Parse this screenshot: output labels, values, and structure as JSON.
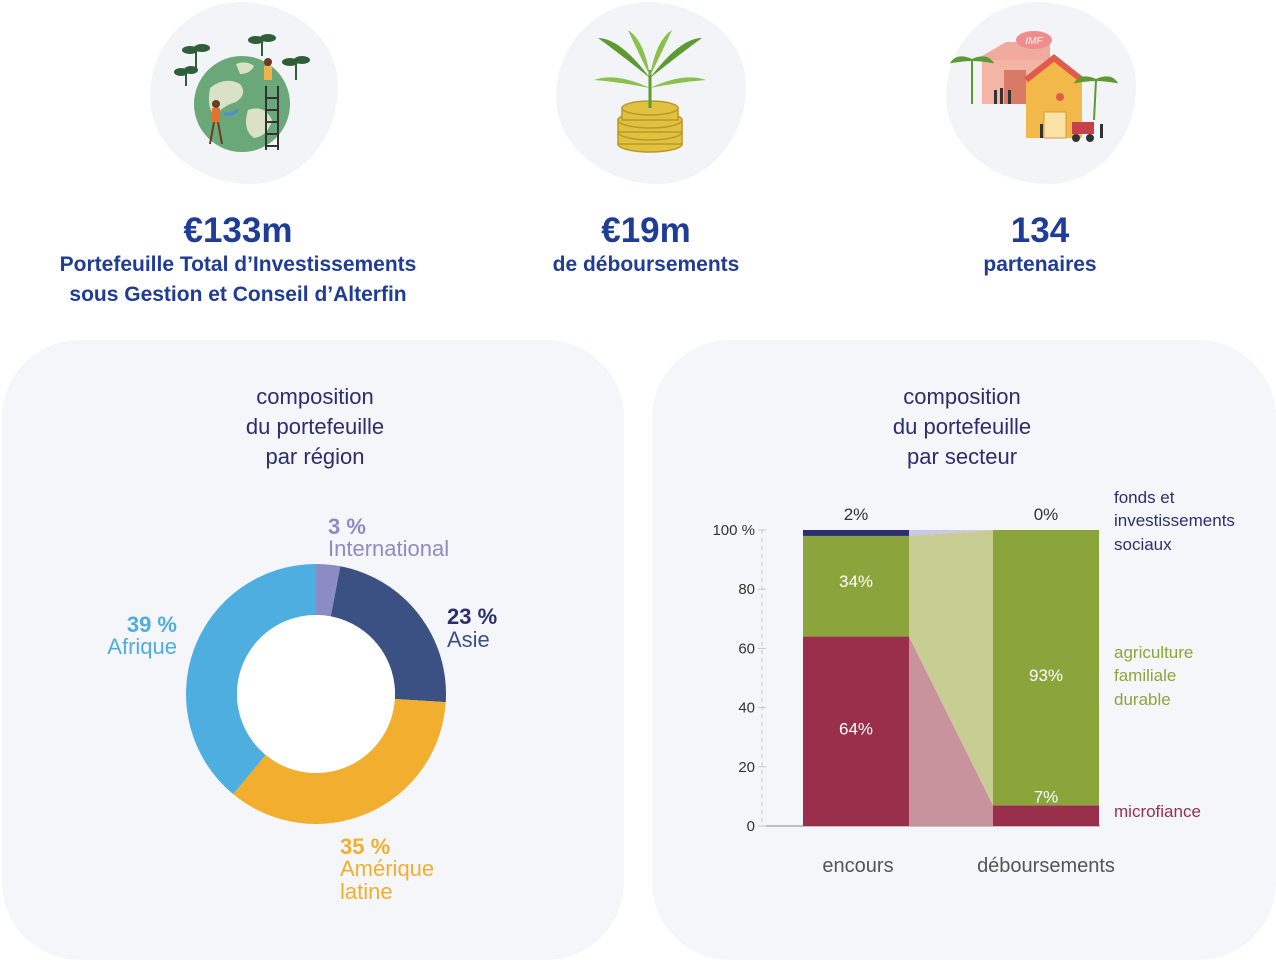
{
  "kpis": [
    {
      "value": "€133m",
      "line1": "Portefeuille Total d’Investissements",
      "line2": "sous Gestion et Conseil d’Alterfin",
      "icon": "globe-plants-icon"
    },
    {
      "value": "€19m",
      "line1": "de déboursements",
      "line2": "",
      "icon": "plant-coins-icon"
    },
    {
      "value": "134",
      "line1": "partenaires",
      "line2": "",
      "icon": "village-buildings-icon"
    }
  ],
  "icon_text": {
    "imf": "IMF"
  },
  "colors": {
    "afrique": "#4faee0",
    "asie": "#3b5183",
    "amerique": "#f2ae2e",
    "international": "#8b8cc4",
    "fonds": "#2b2f6e",
    "agriculture": "#8ba53c",
    "agriculture_light": "#c8cd94",
    "microfinance": "#9a2f4b",
    "microfinance_light": "#c9939d",
    "title": "#2a2d6e",
    "kpi": "#1f3c96"
  },
  "chart_data": [
    {
      "type": "pie",
      "title_lines": [
        "composition",
        "du portefeuille",
        "par région"
      ],
      "slices": [
        {
          "key": "international",
          "pct": "3 %",
          "name": "International",
          "value": 3
        },
        {
          "key": "asie",
          "pct": "23 %",
          "name": "Asie",
          "value": 23
        },
        {
          "key": "amerique",
          "pct": "35 %",
          "name_lines": [
            "Amérique",
            "latine"
          ],
          "value": 35
        },
        {
          "key": "afrique",
          "pct": "39 %",
          "name": "Afrique",
          "value": 39
        }
      ]
    },
    {
      "type": "bar",
      "stacked": true,
      "title_lines": [
        "composition",
        "du portefeuille",
        "par secteur"
      ],
      "categories": [
        "encours",
        "déboursements"
      ],
      "ylim": [
        0,
        100
      ],
      "yticks": [
        {
          "value": 100,
          "label": "100 %"
        },
        {
          "value": 80,
          "label": "80"
        },
        {
          "value": 60,
          "label": "60"
        },
        {
          "value": 40,
          "label": "40"
        },
        {
          "value": 20,
          "label": "20"
        },
        {
          "value": 0,
          "label": "0"
        }
      ],
      "series": [
        {
          "key": "microfinance",
          "name_lines": [
            "microfiance"
          ],
          "values": [
            64,
            7
          ],
          "labels": [
            "64%",
            "7%"
          ]
        },
        {
          "key": "agriculture",
          "name_lines": [
            "agriculture",
            "familiale",
            "durable"
          ],
          "values": [
            34,
            93
          ],
          "labels": [
            "34%",
            "93%"
          ]
        },
        {
          "key": "fonds",
          "name_lines": [
            "fonds et",
            "investissements",
            "sociaux"
          ],
          "values": [
            2,
            0
          ],
          "labels": [
            "2%",
            "0%"
          ]
        }
      ]
    }
  ]
}
